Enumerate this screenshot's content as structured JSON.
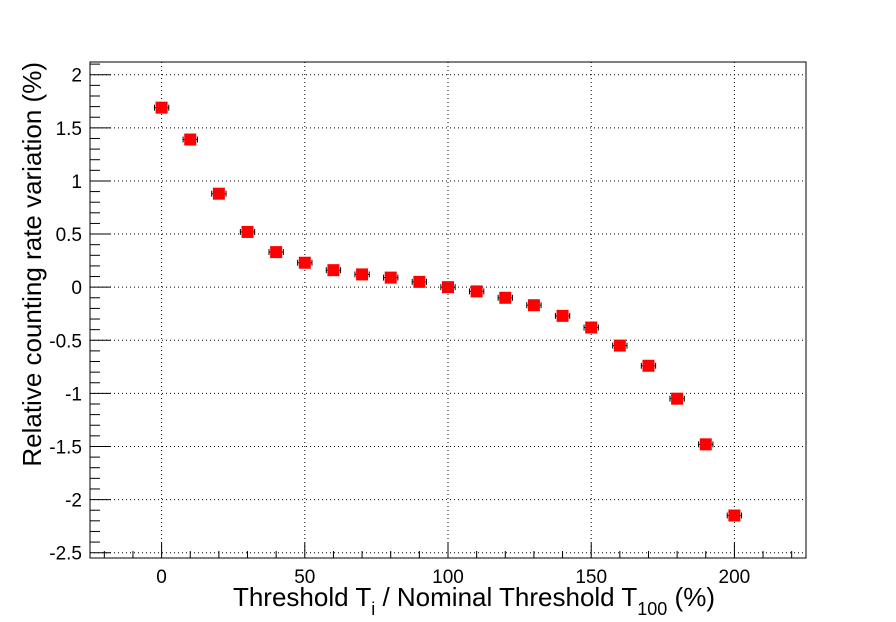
{
  "chart_data": {
    "type": "scatter",
    "xlabel_parts": {
      "pre": "Threshold T",
      "sub1": "i",
      "mid": " / Nominal Threshold T",
      "sub2": "100",
      "post": " (%)"
    },
    "ylabel": "Relative counting rate variation (%)",
    "xlim": [
      -25,
      225
    ],
    "ylim": [
      -2.55,
      2.12
    ],
    "xticks": [
      0,
      50,
      100,
      150,
      200
    ],
    "xtick_labels": [
      "0",
      "50",
      "100",
      "150",
      "200"
    ],
    "yticks": [
      2,
      1.5,
      1,
      0.5,
      0,
      -0.5,
      -1,
      -1.5,
      -2,
      -2.5
    ],
    "ytick_labels": [
      "2",
      "1.5",
      "1",
      "0.5",
      "0",
      "-0.5",
      "-1",
      "-1.5",
      "-2",
      "-2.5"
    ],
    "grid": true,
    "marker_color": "#ff0000",
    "x_error": 2.5,
    "series": [
      {
        "x": [
          0,
          10,
          20,
          30,
          40,
          50,
          60,
          70,
          80,
          90,
          100,
          110,
          120,
          130,
          140,
          150,
          160,
          170,
          180,
          190,
          200
        ],
        "y": [
          1.69,
          1.39,
          0.88,
          0.52,
          0.33,
          0.23,
          0.16,
          0.12,
          0.09,
          0.05,
          0.0,
          -0.04,
          -0.1,
          -0.17,
          -0.27,
          -0.38,
          -0.55,
          -0.74,
          -1.05,
          -1.48,
          -2.15
        ]
      }
    ]
  }
}
